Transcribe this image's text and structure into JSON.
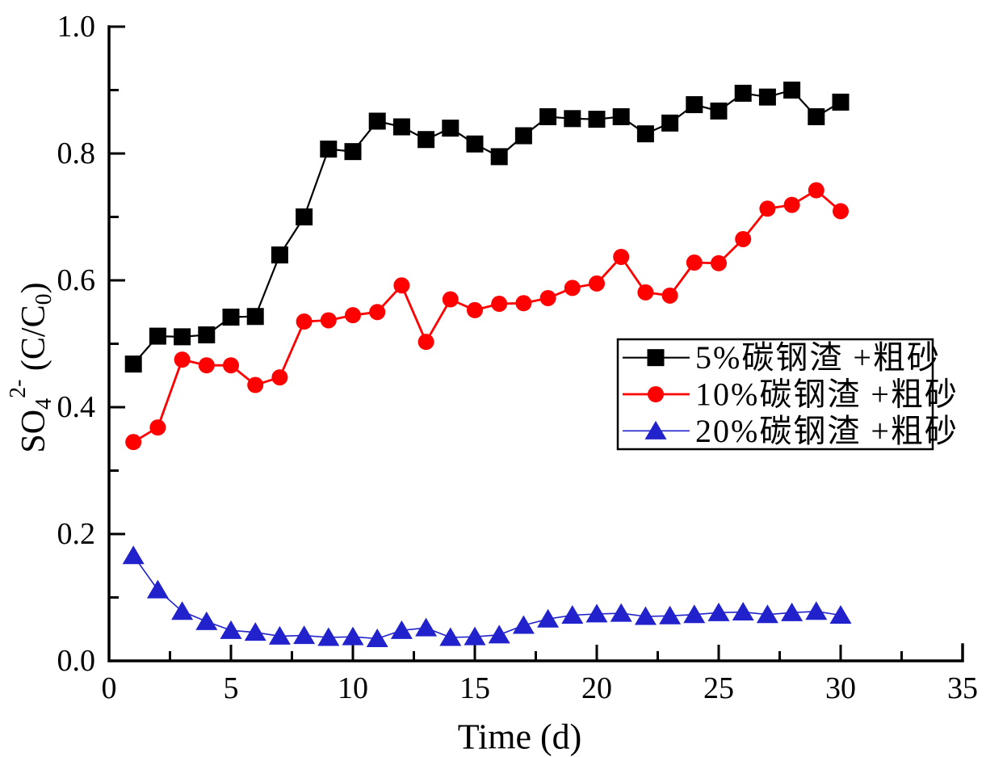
{
  "figure": {
    "background": "#ffffff"
  },
  "chart_data": {
    "type": "line",
    "title": "",
    "xlabel": "Time (d)",
    "ylabel": "SO4 2- (C/C0)",
    "ylabel_parts": [
      {
        "text": "SO",
        "style": "normal"
      },
      {
        "text": "4",
        "style": "sub"
      },
      {
        "text": "2-",
        "style": "sup"
      },
      {
        "text": " (C/C",
        "style": "normal"
      },
      {
        "text": "0",
        "style": "sub"
      },
      {
        "text": ")",
        "style": "normal"
      }
    ],
    "xlim": [
      0,
      35
    ],
    "ylim": [
      0.0,
      1.0
    ],
    "grid": false,
    "legend_position": "middle-right",
    "axis_color": "#000000",
    "x_tick_values": [
      0,
      5,
      10,
      15,
      20,
      25,
      30,
      35
    ],
    "x_tick_labels": [
      "0",
      "5",
      "10",
      "15",
      "20",
      "25",
      "30",
      "35"
    ],
    "x_minor_tick_values": [
      2.5,
      7.5,
      12.5,
      17.5,
      22.5,
      27.5,
      32.5
    ],
    "y_tick_values": [
      0.0,
      0.2,
      0.4,
      0.6,
      0.8,
      1.0
    ],
    "y_tick_labels": [
      "0.0",
      "0.2",
      "0.4",
      "0.6",
      "0.8",
      "1.0"
    ],
    "y_minor_tick_values": [
      0.1,
      0.3,
      0.5,
      0.7,
      0.9
    ],
    "x": [
      1,
      2,
      3,
      4,
      5,
      6,
      7,
      8,
      9,
      10,
      11,
      12,
      13,
      14,
      15,
      16,
      17,
      18,
      19,
      20,
      21,
      22,
      23,
      24,
      25,
      26,
      27,
      28,
      29,
      30
    ],
    "series": [
      {
        "name": "5%碳钢渣 +粗砂",
        "color": "#000000",
        "marker": "square",
        "values": [
          0.468,
          0.512,
          0.511,
          0.514,
          0.542,
          0.543,
          0.64,
          0.7,
          0.807,
          0.803,
          0.851,
          0.842,
          0.822,
          0.84,
          0.815,
          0.795,
          0.828,
          0.858,
          0.855,
          0.854,
          0.858,
          0.831,
          0.848,
          0.877,
          0.867,
          0.895,
          0.889,
          0.9,
          0.858,
          0.881
        ]
      },
      {
        "name": "10%碳钢渣 +粗砂",
        "color": "#FF0000",
        "marker": "circle",
        "values": [
          0.345,
          0.368,
          0.475,
          0.466,
          0.466,
          0.435,
          0.447,
          0.535,
          0.537,
          0.545,
          0.55,
          0.592,
          0.503,
          0.57,
          0.553,
          0.563,
          0.564,
          0.572,
          0.588,
          0.595,
          0.637,
          0.581,
          0.576,
          0.628,
          0.627,
          0.665,
          0.713,
          0.719,
          0.742,
          0.709
        ]
      },
      {
        "name": "20%碳钢渣 +粗砂",
        "color": "#2222CC",
        "marker": "triangle",
        "values": [
          0.166,
          0.112,
          0.078,
          0.062,
          0.048,
          0.045,
          0.039,
          0.04,
          0.037,
          0.038,
          0.035,
          0.048,
          0.052,
          0.037,
          0.038,
          0.041,
          0.056,
          0.066,
          0.072,
          0.074,
          0.075,
          0.07,
          0.071,
          0.073,
          0.076,
          0.077,
          0.073,
          0.076,
          0.078,
          0.072
        ]
      }
    ]
  }
}
